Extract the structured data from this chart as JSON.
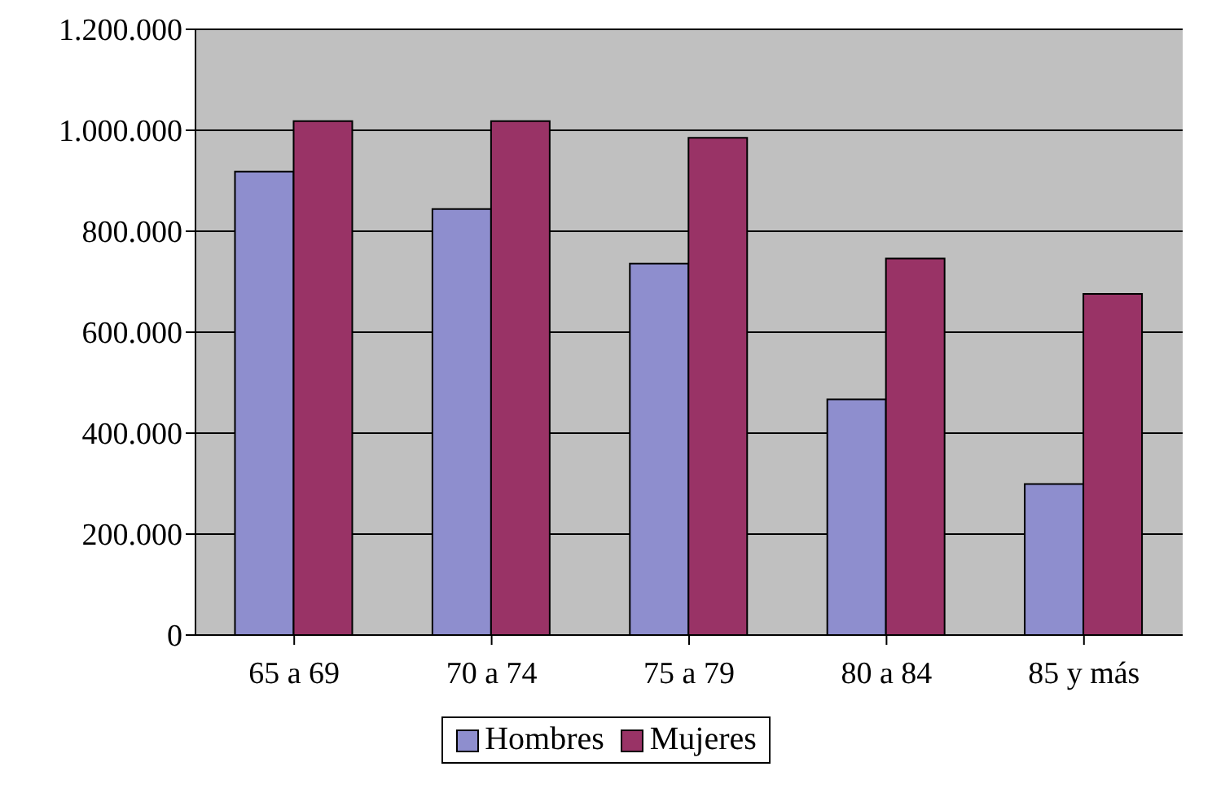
{
  "chart_data": {
    "type": "bar",
    "categories": [
      "65 a 69",
      "70 a 74",
      "75 a 79",
      "80 a 84",
      "85 y más"
    ],
    "series": [
      {
        "name": "Hombres",
        "color": "#8e8ece",
        "values": [
          918000,
          844000,
          736000,
          467000,
          299000
        ]
      },
      {
        "name": "Mujeres",
        "color": "#993366",
        "values": [
          1018000,
          1018000,
          985000,
          746000,
          676000
        ]
      }
    ],
    "ylim": [
      0,
      1200000
    ],
    "yticks": [
      0,
      {
        "value": 200000,
        "label": "200.000"
      },
      {
        "value": 400000,
        "label": "400.000"
      },
      {
        "value": 600000,
        "label": "600.000"
      },
      {
        "value": 800000,
        "label": "800.000"
      },
      {
        "value": 1000000,
        "label": "1.000.000"
      },
      {
        "value": 1200000,
        "label": "1.200.000"
      }
    ],
    "grid": "y",
    "legend": "bottom"
  }
}
